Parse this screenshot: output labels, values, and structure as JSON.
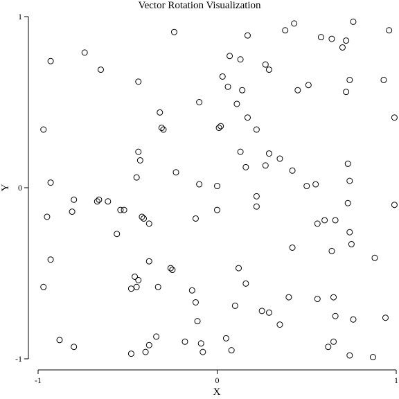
{
  "chart_data": {
    "type": "scatter",
    "title": "Vector Rotation Visualization",
    "xlabel": "X",
    "ylabel": "Y",
    "xlim": [
      -1,
      1
    ],
    "ylim": [
      -1,
      1
    ],
    "x_ticks": [
      -1,
      0,
      1
    ],
    "y_ticks": [
      -1,
      0,
      1
    ],
    "x_tick_labels": [
      "-1",
      "0",
      "1"
    ],
    "y_tick_labels": [
      "-1",
      "0",
      "1"
    ],
    "grid": false,
    "legend": "none",
    "marker": "open-circle",
    "point_color": "#000000",
    "background_color": "#ffffff",
    "series": [
      {
        "points": [
          [
            -0.97,
            0.34
          ],
          [
            -0.93,
            0.74
          ],
          [
            -0.74,
            0.79
          ],
          [
            -0.65,
            0.69
          ],
          [
            -0.44,
            0.62
          ],
          [
            -0.24,
            0.91
          ],
          [
            -0.32,
            0.44
          ],
          [
            -0.31,
            0.35
          ],
          [
            -0.3,
            0.34
          ],
          [
            -0.44,
            0.21
          ],
          [
            -0.43,
            0.16
          ],
          [
            -0.23,
            0.09
          ],
          [
            -0.45,
            0.06
          ],
          [
            -0.97,
            -0.58
          ],
          [
            -0.93,
            -0.42
          ],
          [
            -0.95,
            -0.17
          ],
          [
            -0.93,
            0.03
          ],
          [
            -0.81,
            -0.14
          ],
          [
            -0.8,
            -0.07
          ],
          [
            -0.67,
            -0.08
          ],
          [
            -0.66,
            -0.07
          ],
          [
            -0.61,
            -0.08
          ],
          [
            -0.56,
            -0.27
          ],
          [
            -0.54,
            -0.13
          ],
          [
            -0.52,
            -0.13
          ],
          [
            -0.42,
            -0.17
          ],
          [
            -0.41,
            -0.18
          ],
          [
            -0.38,
            -0.21
          ],
          [
            -0.38,
            -0.43
          ],
          [
            -0.48,
            -0.59
          ],
          [
            -0.46,
            -0.52
          ],
          [
            -0.45,
            -0.58
          ],
          [
            -0.44,
            -0.54
          ],
          [
            -0.33,
            -0.58
          ],
          [
            -0.25,
            -0.48
          ],
          [
            -0.26,
            -0.47
          ],
          [
            -0.88,
            -0.89
          ],
          [
            -0.8,
            -0.93
          ],
          [
            -0.48,
            -0.97
          ],
          [
            -0.4,
            -0.96
          ],
          [
            -0.38,
            -0.92
          ],
          [
            -0.34,
            -0.87
          ],
          [
            -0.18,
            -0.9
          ],
          [
            -0.14,
            -0.6
          ],
          [
            -0.12,
            -0.67
          ],
          [
            -0.11,
            -0.78
          ],
          [
            -0.09,
            -0.91
          ],
          [
            -0.08,
            -0.96
          ],
          [
            0.01,
            0.35
          ],
          [
            0.02,
            0.36
          ],
          [
            0.03,
            0.65
          ],
          [
            0.06,
            0.59
          ],
          [
            0.07,
            0.77
          ],
          [
            0.11,
            0.49
          ],
          [
            0.13,
            0.75
          ],
          [
            0.14,
            0.57
          ],
          [
            0.17,
            0.41
          ],
          [
            0.17,
            0.89
          ],
          [
            0.22,
            0.34
          ],
          [
            0.27,
            0.72
          ],
          [
            0.29,
            0.69
          ],
          [
            0.38,
            0.92
          ],
          [
            0.43,
            0.96
          ],
          [
            0.45,
            0.57
          ],
          [
            0.51,
            0.6
          ],
          [
            0.58,
            0.88
          ],
          [
            0.64,
            0.87
          ],
          [
            0.7,
            0.82
          ],
          [
            0.72,
            0.86
          ],
          [
            0.76,
            0.97
          ],
          [
            0.72,
            0.56
          ],
          [
            0.74,
            0.63
          ],
          [
            0.93,
            0.63
          ],
          [
            0.96,
            0.92
          ],
          [
            0.99,
            0.41
          ],
          [
            -0.1,
            0.5
          ],
          [
            0.13,
            0.21
          ],
          [
            0.16,
            0.12
          ],
          [
            0.27,
            0.13
          ],
          [
            0.29,
            0.2
          ],
          [
            0.35,
            0.17
          ],
          [
            0.42,
            0.1
          ],
          [
            0.5,
            0.01
          ],
          [
            0.55,
            0.02
          ],
          [
            0.73,
            0.14
          ],
          [
            0.74,
            0.04
          ],
          [
            0.73,
            -0.09
          ],
          [
            0.74,
            -0.26
          ],
          [
            0.75,
            -0.33
          ],
          [
            0.56,
            -0.21
          ],
          [
            0.6,
            -0.19
          ],
          [
            0.64,
            -0.37
          ],
          [
            0.66,
            -0.19
          ],
          [
            0.42,
            -0.35
          ],
          [
            0.22,
            -0.05
          ],
          [
            0.22,
            -0.11
          ],
          [
            0.0,
            0.01
          ],
          [
            0.0,
            -0.13
          ],
          [
            -0.1,
            0.02
          ],
          [
            -0.12,
            -0.18
          ],
          [
            0.12,
            -0.47
          ],
          [
            0.16,
            -0.56
          ],
          [
            0.1,
            -0.69
          ],
          [
            0.25,
            -0.72
          ],
          [
            0.29,
            -0.73
          ],
          [
            0.35,
            -0.8
          ],
          [
            0.4,
            -0.64
          ],
          [
            0.56,
            -0.65
          ],
          [
            0.65,
            -0.64
          ],
          [
            0.66,
            -0.75
          ],
          [
            0.76,
            -0.77
          ],
          [
            0.88,
            -0.41
          ],
          [
            0.94,
            -0.76
          ],
          [
            0.99,
            -0.1
          ],
          [
            0.05,
            -0.88
          ],
          [
            0.08,
            -0.95
          ],
          [
            0.62,
            -0.93
          ],
          [
            0.65,
            -0.9
          ],
          [
            0.74,
            -0.98
          ],
          [
            0.87,
            -0.99
          ]
        ]
      }
    ]
  }
}
